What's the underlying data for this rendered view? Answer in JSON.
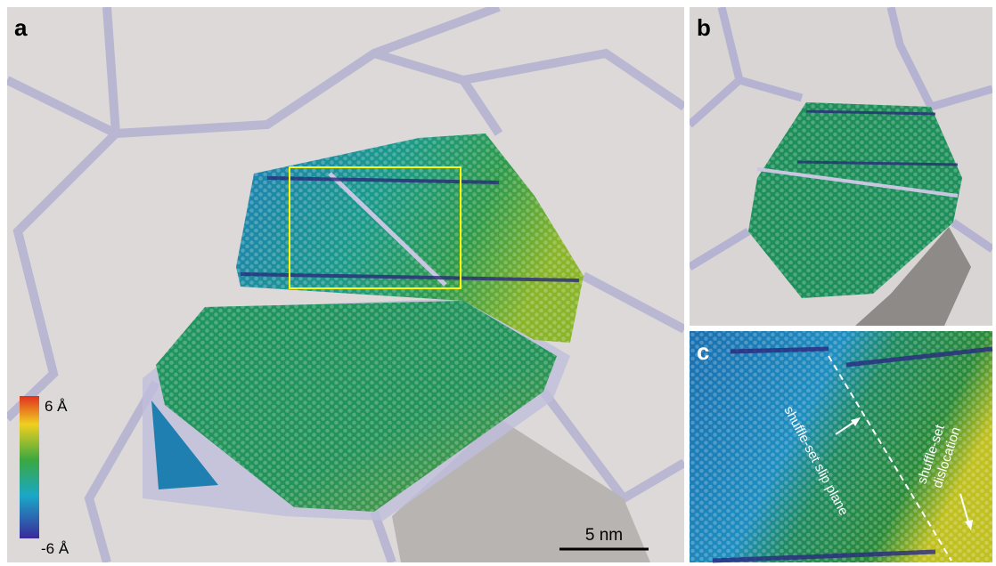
{
  "panels": {
    "a": {
      "label": "a",
      "colorbar": {
        "max_label": "6 Å",
        "min_label": "-6 Å"
      },
      "scale_bar": "5 nm"
    },
    "b": {
      "label": "b"
    },
    "c": {
      "label": "c",
      "slip_plane_note": "shuffle-set slip plane",
      "dislocation_note": [
        "shuffle-set",
        "dislocation"
      ]
    }
  }
}
